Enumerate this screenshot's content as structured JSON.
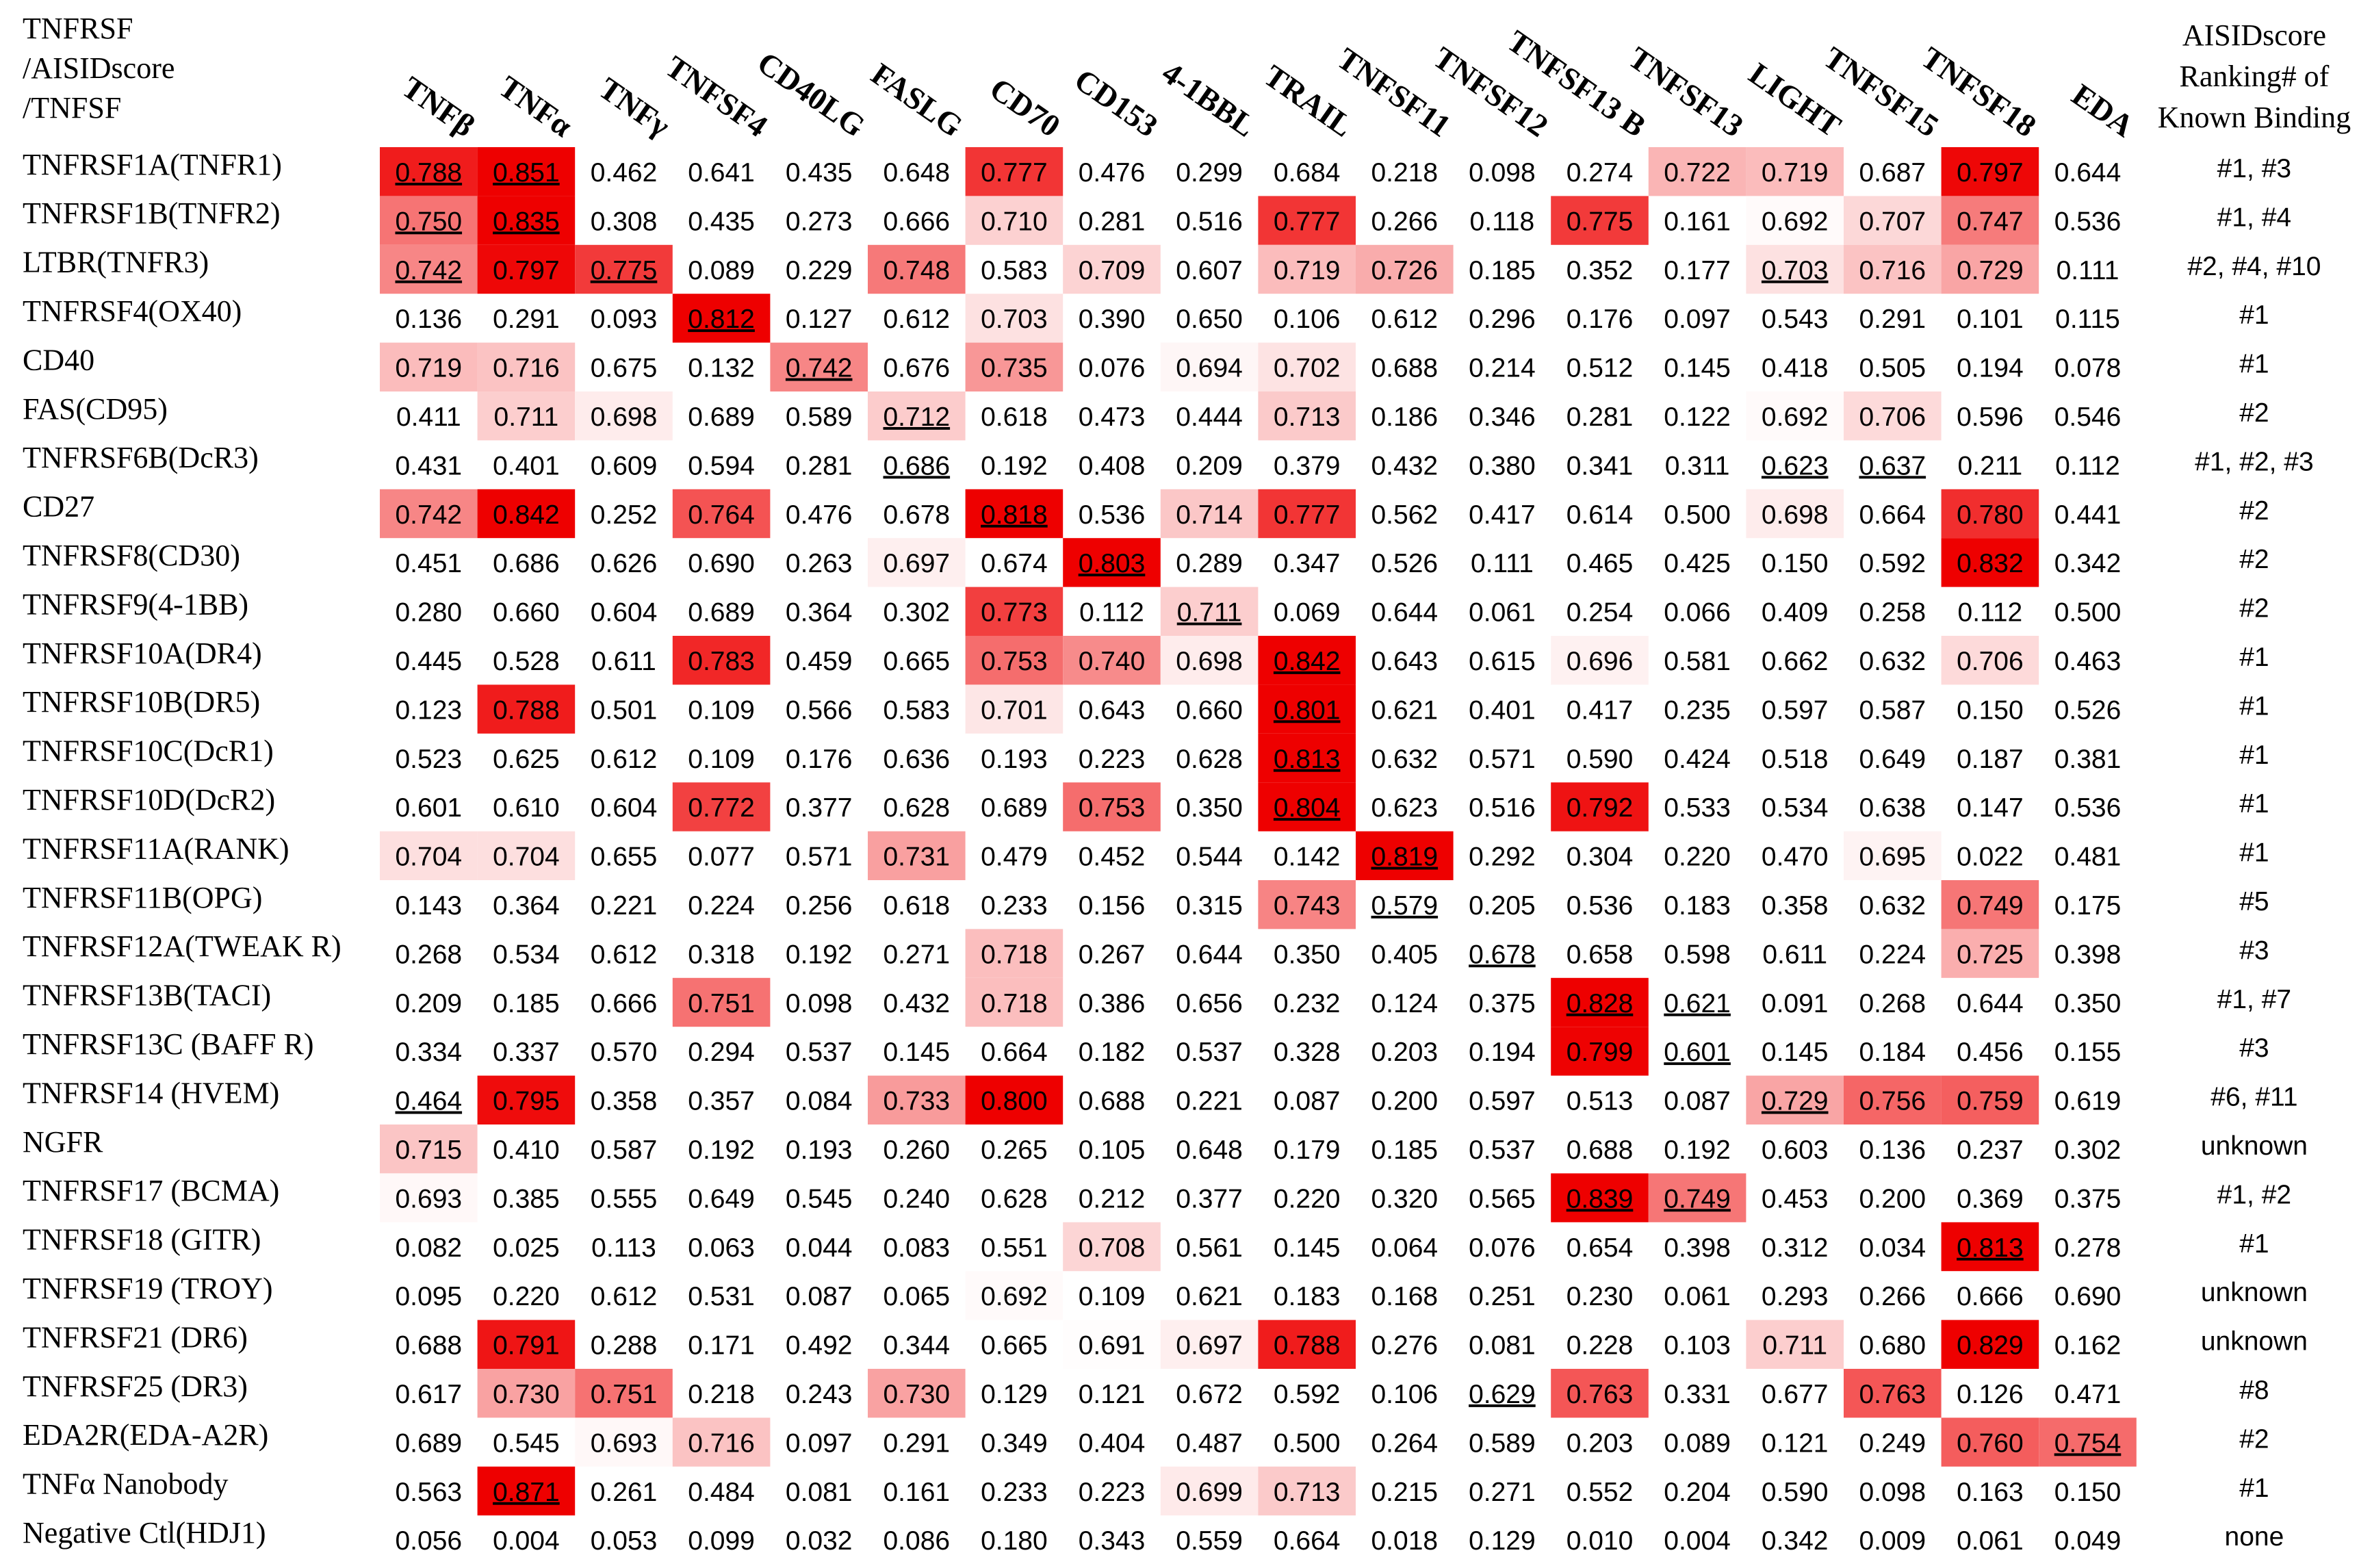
{
  "corner_label": [
    "TNFRSF",
    "/AISIDscore",
    "/TNFSF"
  ],
  "columns": [
    "TNFβ",
    "TNFα",
    "TNFγ",
    "TNFSF4",
    "CD40LG",
    "FASLG",
    "CD70",
    "CD153",
    "4-1BBL",
    "TRAIL",
    "TNFSF11",
    "TNFSF12",
    "TNFSF13 B",
    "TNFSF13",
    "LIGHT",
    "TNFSF15",
    "TNFSF18",
    "EDA"
  ],
  "ranking_header": [
    "AISIDscore",
    "Ranking# of",
    "Known Binding"
  ],
  "color_scale": {
    "from": "#ffffff",
    "to": "#ee0000",
    "range": [
      0.69,
      0.8
    ]
  },
  "rows": [
    {
      "label": "TNFRSF1A(TNFR1)",
      "values": [
        "0.788",
        "0.851",
        "0.462",
        "0.641",
        "0.435",
        "0.648",
        "0.777",
        "0.476",
        "0.299",
        "0.684",
        "0.218",
        "0.098",
        "0.274",
        "0.722",
        "0.719",
        "0.687",
        "0.797",
        "0.644"
      ],
      "underlined": [
        0,
        1
      ],
      "ranking": "#1, #3"
    },
    {
      "label": "TNFRSF1B(TNFR2)",
      "values": [
        "0.750",
        "0.835",
        "0.308",
        "0.435",
        "0.273",
        "0.666",
        "0.710",
        "0.281",
        "0.516",
        "0.777",
        "0.266",
        "0.118",
        "0.775",
        "0.161",
        "0.692",
        "0.707",
        "0.747",
        "0.536"
      ],
      "underlined": [
        0,
        1
      ],
      "ranking": "#1, #4"
    },
    {
      "label": "LTBR(TNFR3)",
      "values": [
        "0.742",
        "0.797",
        "0.775",
        "0.089",
        "0.229",
        "0.748",
        "0.583",
        "0.709",
        "0.607",
        "0.719",
        "0.726",
        "0.185",
        "0.352",
        "0.177",
        "0.703",
        "0.716",
        "0.729",
        "0.111"
      ],
      "underlined": [
        0,
        2,
        14
      ],
      "ranking": "#2, #4, #10"
    },
    {
      "label": "TNFRSF4(OX40)",
      "values": [
        "0.136",
        "0.291",
        "0.093",
        "0.812",
        "0.127",
        "0.612",
        "0.703",
        "0.390",
        "0.650",
        "0.106",
        "0.612",
        "0.296",
        "0.176",
        "0.097",
        "0.543",
        "0.291",
        "0.101",
        "0.115"
      ],
      "underlined": [
        3
      ],
      "ranking": "#1"
    },
    {
      "label": "CD40",
      "values": [
        "0.719",
        "0.716",
        "0.675",
        "0.132",
        "0.742",
        "0.676",
        "0.735",
        "0.076",
        "0.694",
        "0.702",
        "0.688",
        "0.214",
        "0.512",
        "0.145",
        "0.418",
        "0.505",
        "0.194",
        "0.078"
      ],
      "underlined": [
        4
      ],
      "ranking": "#1"
    },
    {
      "label": "FAS(CD95)",
      "values": [
        "0.411",
        "0.711",
        "0.698",
        "0.689",
        "0.589",
        "0.712",
        "0.618",
        "0.473",
        "0.444",
        "0.713",
        "0.186",
        "0.346",
        "0.281",
        "0.122",
        "0.692",
        "0.706",
        "0.596",
        "0.546"
      ],
      "underlined": [
        5
      ],
      "ranking": "#2"
    },
    {
      "label": "TNFRSF6B(DcR3)",
      "values": [
        "0.431",
        "0.401",
        "0.609",
        "0.594",
        "0.281",
        "0.686",
        "0.192",
        "0.408",
        "0.209",
        "0.379",
        "0.432",
        "0.380",
        "0.341",
        "0.311",
        "0.623",
        "0.637",
        "0.211",
        "0.112"
      ],
      "underlined": [
        5,
        14,
        15
      ],
      "ranking": "#1, #2, #3"
    },
    {
      "label": "CD27",
      "values": [
        "0.742",
        "0.842",
        "0.252",
        "0.764",
        "0.476",
        "0.678",
        "0.818",
        "0.536",
        "0.714",
        "0.777",
        "0.562",
        "0.417",
        "0.614",
        "0.500",
        "0.698",
        "0.664",
        "0.780",
        "0.441"
      ],
      "underlined": [
        6
      ],
      "ranking": "#2"
    },
    {
      "label": "TNFRSF8(CD30)",
      "values": [
        "0.451",
        "0.686",
        "0.626",
        "0.690",
        "0.263",
        "0.697",
        "0.674",
        "0.803",
        "0.289",
        "0.347",
        "0.526",
        "0.111",
        "0.465",
        "0.425",
        "0.150",
        "0.592",
        "0.832",
        "0.342"
      ],
      "underlined": [
        7
      ],
      "ranking": "#2"
    },
    {
      "label": "TNFRSF9(4-1BB)",
      "values": [
        "0.280",
        "0.660",
        "0.604",
        "0.689",
        "0.364",
        "0.302",
        "0.773",
        "0.112",
        "0.711",
        "0.069",
        "0.644",
        "0.061",
        "0.254",
        "0.066",
        "0.409",
        "0.258",
        "0.112",
        "0.500"
      ],
      "underlined": [
        8
      ],
      "ranking": "#2"
    },
    {
      "label": "TNFRSF10A(DR4)",
      "values": [
        "0.445",
        "0.528",
        "0.611",
        "0.783",
        "0.459",
        "0.665",
        "0.753",
        "0.740",
        "0.698",
        "0.842",
        "0.643",
        "0.615",
        "0.696",
        "0.581",
        "0.662",
        "0.632",
        "0.706",
        "0.463"
      ],
      "underlined": [
        9
      ],
      "ranking": "#1"
    },
    {
      "label": "TNFRSF10B(DR5)",
      "values": [
        "0.123",
        "0.788",
        "0.501",
        "0.109",
        "0.566",
        "0.583",
        "0.701",
        "0.643",
        "0.660",
        "0.801",
        "0.621",
        "0.401",
        "0.417",
        "0.235",
        "0.597",
        "0.587",
        "0.150",
        "0.526"
      ],
      "underlined": [
        9
      ],
      "ranking": "#1"
    },
    {
      "label": "TNFRSF10C(DcR1)",
      "values": [
        "0.523",
        "0.625",
        "0.612",
        "0.109",
        "0.176",
        "0.636",
        "0.193",
        "0.223",
        "0.628",
        "0.813",
        "0.632",
        "0.571",
        "0.590",
        "0.424",
        "0.518",
        "0.649",
        "0.187",
        "0.381"
      ],
      "underlined": [
        9
      ],
      "ranking": "#1"
    },
    {
      "label": "TNFRSF10D(DcR2)",
      "values": [
        "0.601",
        "0.610",
        "0.604",
        "0.772",
        "0.377",
        "0.628",
        "0.689",
        "0.753",
        "0.350",
        "0.804",
        "0.623",
        "0.516",
        "0.792",
        "0.533",
        "0.534",
        "0.638",
        "0.147",
        "0.536"
      ],
      "underlined": [
        9
      ],
      "ranking": "#1"
    },
    {
      "label": "TNFRSF11A(RANK)",
      "values": [
        "0.704",
        "0.704",
        "0.655",
        "0.077",
        "0.571",
        "0.731",
        "0.479",
        "0.452",
        "0.544",
        "0.142",
        "0.819",
        "0.292",
        "0.304",
        "0.220",
        "0.470",
        "0.695",
        "0.022",
        "0.481"
      ],
      "underlined": [
        10
      ],
      "ranking": "#1"
    },
    {
      "label": "TNFRSF11B(OPG)",
      "values": [
        "0.143",
        "0.364",
        "0.221",
        "0.224",
        "0.256",
        "0.618",
        "0.233",
        "0.156",
        "0.315",
        "0.743",
        "0.579",
        "0.205",
        "0.536",
        "0.183",
        "0.358",
        "0.632",
        "0.749",
        "0.175"
      ],
      "underlined": [
        10
      ],
      "ranking": "#5"
    },
    {
      "label": "TNFRSF12A(TWEAK R)",
      "values": [
        "0.268",
        "0.534",
        "0.612",
        "0.318",
        "0.192",
        "0.271",
        "0.718",
        "0.267",
        "0.644",
        "0.350",
        "0.405",
        "0.678",
        "0.658",
        "0.598",
        "0.611",
        "0.224",
        "0.725",
        "0.398"
      ],
      "underlined": [
        11
      ],
      "ranking": "#3"
    },
    {
      "label": "TNFRSF13B(TACI)",
      "values": [
        "0.209",
        "0.185",
        "0.666",
        "0.751",
        "0.098",
        "0.432",
        "0.718",
        "0.386",
        "0.656",
        "0.232",
        "0.124",
        "0.375",
        "0.828",
        "0.621",
        "0.091",
        "0.268",
        "0.644",
        "0.350"
      ],
      "underlined": [
        12,
        13
      ],
      "ranking": "#1, #7"
    },
    {
      "label": "TNFRSF13C (BAFF R)",
      "values": [
        "0.334",
        "0.337",
        "0.570",
        "0.294",
        "0.537",
        "0.145",
        "0.664",
        "0.182",
        "0.537",
        "0.328",
        "0.203",
        "0.194",
        "0.799",
        "0.601",
        "0.145",
        "0.184",
        "0.456",
        "0.155"
      ],
      "underlined": [
        13
      ],
      "ranking": "#3"
    },
    {
      "label": "TNFRSF14 (HVEM)",
      "values": [
        "0.464",
        "0.795",
        "0.358",
        "0.357",
        "0.084",
        "0.733",
        "0.800",
        "0.688",
        "0.221",
        "0.087",
        "0.200",
        "0.597",
        "0.513",
        "0.087",
        "0.729",
        "0.756",
        "0.759",
        "0.619"
      ],
      "underlined": [
        0,
        14
      ],
      "ranking": "#6, #11"
    },
    {
      "label": "NGFR",
      "values": [
        "0.715",
        "0.410",
        "0.587",
        "0.192",
        "0.193",
        "0.260",
        "0.265",
        "0.105",
        "0.648",
        "0.179",
        "0.185",
        "0.537",
        "0.688",
        "0.192",
        "0.603",
        "0.136",
        "0.237",
        "0.302"
      ],
      "ranking": "unknown"
    },
    {
      "label": "TNFRSF17 (BCMA)",
      "values": [
        "0.693",
        "0.385",
        "0.555",
        "0.649",
        "0.545",
        "0.240",
        "0.628",
        "0.212",
        "0.377",
        "0.220",
        "0.320",
        "0.565",
        "0.839",
        "0.749",
        "0.453",
        "0.200",
        "0.369",
        "0.375"
      ],
      "underlined": [
        12,
        13
      ],
      "ranking": "#1, #2"
    },
    {
      "label": "TNFRSF18 (GITR)",
      "values": [
        "0.082",
        "0.025",
        "0.113",
        "0.063",
        "0.044",
        "0.083",
        "0.551",
        "0.708",
        "0.561",
        "0.145",
        "0.064",
        "0.076",
        "0.654",
        "0.398",
        "0.312",
        "0.034",
        "0.813",
        "0.278"
      ],
      "underlined": [
        16
      ],
      "ranking": "#1"
    },
    {
      "label": "TNFRSF19 (TROY)",
      "values": [
        "0.095",
        "0.220",
        "0.612",
        "0.531",
        "0.087",
        "0.065",
        "0.692",
        "0.109",
        "0.621",
        "0.183",
        "0.168",
        "0.251",
        "0.230",
        "0.061",
        "0.293",
        "0.266",
        "0.666",
        "0.690"
      ],
      "ranking": "unknown"
    },
    {
      "label": "TNFRSF21 (DR6)",
      "values": [
        "0.688",
        "0.791",
        "0.288",
        "0.171",
        "0.492",
        "0.344",
        "0.665",
        "0.691",
        "0.697",
        "0.788",
        "0.276",
        "0.081",
        "0.228",
        "0.103",
        "0.711",
        "0.680",
        "0.829",
        "0.162"
      ],
      "ranking": "unknown"
    },
    {
      "label": "TNFRSF25 (DR3)",
      "values": [
        "0.617",
        "0.730",
        "0.751",
        "0.218",
        "0.243",
        "0.730",
        "0.129",
        "0.121",
        "0.672",
        "0.592",
        "0.106",
        "0.629",
        "0.763",
        "0.331",
        "0.677",
        "0.763",
        "0.126",
        "0.471"
      ],
      "underlined": [
        11
      ],
      "ranking": "#8"
    },
    {
      "label": "EDA2R(EDA-A2R)",
      "values": [
        "0.689",
        "0.545",
        "0.693",
        "0.716",
        "0.097",
        "0.291",
        "0.349",
        "0.404",
        "0.487",
        "0.500",
        "0.264",
        "0.589",
        "0.203",
        "0.089",
        "0.121",
        "0.249",
        "0.760",
        "0.754"
      ],
      "underlined": [
        17
      ],
      "ranking": "#2"
    },
    {
      "label": "TNFα Nanobody",
      "values": [
        "0.563",
        "0.871",
        "0.261",
        "0.484",
        "0.081",
        "0.161",
        "0.233",
        "0.223",
        "0.699",
        "0.713",
        "0.215",
        "0.271",
        "0.552",
        "0.204",
        "0.590",
        "0.098",
        "0.163",
        "0.150"
      ],
      "underlined": [
        1
      ],
      "ranking": "#1"
    },
    {
      "label": "Negative Ctl(HDJ1)",
      "values": [
        "0.056",
        "0.004",
        "0.053",
        "0.099",
        "0.032",
        "0.086",
        "0.180",
        "0.343",
        "0.559",
        "0.664",
        "0.018",
        "0.129",
        "0.010",
        "0.004",
        "0.342",
        "0.009",
        "0.061",
        "0.049"
      ],
      "ranking": "none"
    }
  ]
}
